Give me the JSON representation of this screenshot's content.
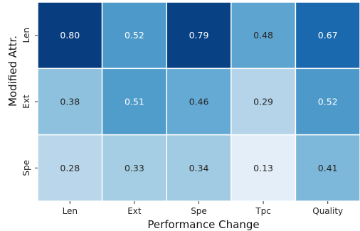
{
  "chart_data": {
    "type": "heatmap",
    "title": "",
    "xlabel": "Performance Change",
    "ylabel": "Modified Attr.",
    "x_categories": [
      "Len",
      "Ext",
      "Spe",
      "Tpc",
      "Quality"
    ],
    "y_categories": [
      "Len",
      "Ext",
      "Spe"
    ],
    "values": [
      [
        0.8,
        0.52,
        0.79,
        0.48,
        0.67
      ],
      [
        0.38,
        0.51,
        0.46,
        0.29,
        0.52
      ],
      [
        0.28,
        0.33,
        0.34,
        0.13,
        0.41
      ]
    ],
    "value_labels": [
      [
        "0.80",
        "0.52",
        "0.79",
        "0.48",
        "0.67"
      ],
      [
        "0.38",
        "0.51",
        "0.46",
        "0.29",
        "0.52"
      ],
      [
        "0.28",
        "0.33",
        "0.34",
        "0.13",
        "0.41"
      ]
    ],
    "colormap": "Blues",
    "colorbar": false,
    "grid_lines_color": "#ffffff"
  }
}
